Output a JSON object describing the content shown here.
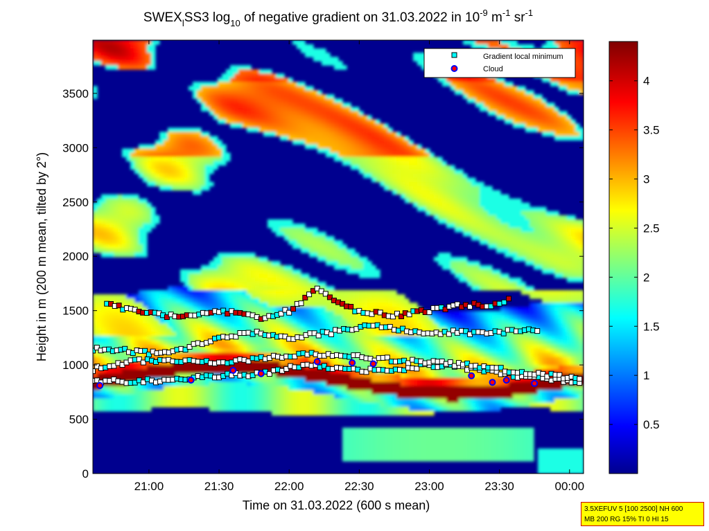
{
  "chart_data": {
    "type": "heatmap",
    "title": {
      "part1": "SWEX",
      "sub1": "l",
      "part2": "SS3 log",
      "sub2": "10",
      "part3": " of negative gradient on 31.03.2022 in 10",
      "sup1": "-9",
      "part4": " m",
      "sup2": "-1",
      "part5": " sr",
      "sup3": "-1"
    },
    "xlabel": "Time on 31.03.2022 (600 s mean)",
    "ylabel": "Height in m (200 m mean, tilted by 2°)",
    "x_ticks": [
      "21:00",
      "21:30",
      "22:00",
      "22:30",
      "23:00",
      "23:30",
      "00:00"
    ],
    "x_tick_hours": [
      21.0,
      21.5,
      22.0,
      22.5,
      23.0,
      23.5,
      24.0
    ],
    "x_range_hours": [
      20.6,
      24.1
    ],
    "y_ticks": [
      "0",
      "500",
      "1000",
      "1500",
      "2000",
      "2500",
      "3000",
      "3500"
    ],
    "y_tick_values": [
      0,
      500,
      1000,
      1500,
      2000,
      2500,
      3000,
      3500
    ],
    "ylim": [
      0,
      3990
    ],
    "colorbar": {
      "ticks": [
        "0.5",
        "1",
        "1.5",
        "2",
        "2.5",
        "3",
        "3.5",
        "4"
      ],
      "tick_values": [
        0.5,
        1,
        1.5,
        2,
        2.5,
        3,
        3.5,
        4
      ],
      "range": [
        0,
        4.4
      ],
      "colormap": "jet"
    },
    "legend": {
      "placement": "top-right",
      "entries": [
        {
          "label": "Gradient local minimum",
          "marker": "square",
          "color": "#00ffff"
        },
        {
          "label": "Cloud",
          "marker": "circle",
          "color": "#ff0000",
          "edge": "#0000ff"
        }
      ]
    },
    "series": [
      {
        "name": "Gradient local minimum",
        "layers": [
          {
            "x": [
              20.6,
              20.9,
              21.2,
              21.5,
              21.8,
              22.1,
              22.4,
              22.7,
              23.0,
              23.3,
              23.6,
              23.9,
              24.1
            ],
            "y": [
              850,
              850,
              860,
              900,
              920,
              1000,
              960,
              940,
              1000,
              970,
              900,
              860,
              830
            ]
          },
          {
            "x": [
              20.6,
              20.9,
              21.2,
              21.5,
              21.8,
              22.1,
              22.4,
              22.7,
              23.0,
              23.3,
              23.6,
              23.9,
              24.1
            ],
            "y": [
              960,
              1040,
              1030,
              1020,
              1060,
              1100,
              1080,
              1050,
              1020,
              1000,
              940,
              900,
              860
            ]
          },
          {
            "x": [
              20.6,
              20.8,
              21.0,
              21.2,
              21.5,
              21.8,
              22.0,
              22.3,
              22.6,
              22.9,
              23.2,
              23.5,
              23.8
            ],
            "y": [
              1150,
              1140,
              1110,
              1130,
              1250,
              1300,
              1250,
              1300,
              1380,
              1300,
              1300,
              1300,
              1320
            ]
          },
          {
            "x": [
              20.7,
              20.9,
              21.1,
              21.3,
              21.5,
              21.8,
              22.0,
              22.2,
              22.5,
              22.8,
              23.0,
              23.2,
              23.5,
              23.6
            ],
            "y": [
              1550,
              1510,
              1460,
              1450,
              1500,
              1440,
              1500,
              1700,
              1480,
              1460,
              1500,
              1550,
              1560,
              1620
            ]
          }
        ]
      },
      {
        "name": "Cloud",
        "x": [
          20.65,
          21.3,
          21.6,
          21.8,
          22.2,
          22.45,
          22.6,
          23.3,
          23.45,
          23.55,
          23.75
        ],
        "y": [
          810,
          860,
          950,
          920,
          1030,
          1020,
          1010,
          900,
          840,
          860,
          830
        ]
      }
    ]
  },
  "params": {
    "line1": "3.5XEFUV 5 [100 2500] NH 600",
    "line2": "MB 200 RG 15% TI 0 HI 15"
  }
}
